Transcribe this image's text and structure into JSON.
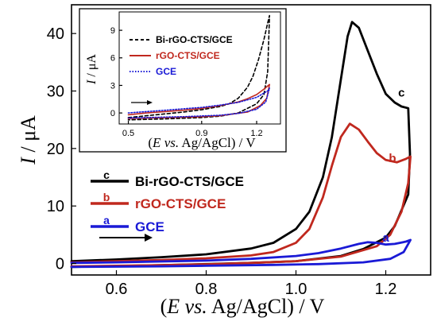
{
  "chart_data": [
    {
      "type": "line",
      "x_axis": {
        "label_parts": [
          "(",
          "E",
          " ",
          "vs.",
          " Ag/AgCl) / V"
        ],
        "range": [
          0.5,
          1.3
        ],
        "ticks": [
          0.6,
          0.8,
          1.0,
          1.2
        ],
        "tick_labels": [
          "0.6",
          "0.8",
          "1.0",
          "1.2"
        ]
      },
      "y_axis": {
        "label_parts": [
          "I",
          " / μA"
        ],
        "range": [
          -2,
          45
        ],
        "ticks": [
          0,
          10,
          20,
          30,
          40
        ],
        "tick_labels": [
          "0",
          "10",
          "20",
          "30",
          "40"
        ]
      },
      "legend": {
        "position": "left",
        "items": [
          {
            "marker": "c",
            "label": "Bi-rGO-CTS/GCE",
            "color": "#000000"
          },
          {
            "marker": "b",
            "label": "rGO-CTS/GCE",
            "color": "#c0281e"
          },
          {
            "marker": "a",
            "label": "GCE",
            "color": "#1a1ad6"
          }
        ]
      },
      "curve_labels": [
        {
          "text": "c",
          "at": [
            1.235,
            29.0
          ],
          "color": "#000000"
        },
        {
          "text": "b",
          "at": [
            1.215,
            17.6
          ],
          "color": "#c0281e"
        },
        {
          "text": "a",
          "at": [
            1.2,
            3.8
          ],
          "color": "#1a1ad6"
        }
      ],
      "scan_direction": "positive",
      "series": [
        {
          "name": "Bi-rGO-CTS/GCE",
          "color": "#000000",
          "forward": [
            [
              0.5,
              0.4
            ],
            [
              0.6,
              0.7
            ],
            [
              0.7,
              1.1
            ],
            [
              0.8,
              1.6
            ],
            [
              0.9,
              2.6
            ],
            [
              0.95,
              3.6
            ],
            [
              1.0,
              6.0
            ],
            [
              1.03,
              9.0
            ],
            [
              1.06,
              15.0
            ],
            [
              1.08,
              22.0
            ],
            [
              1.1,
              32.0
            ],
            [
              1.115,
              39.5
            ],
            [
              1.125,
              42.0
            ],
            [
              1.14,
              41.0
            ],
            [
              1.16,
              37.0
            ],
            [
              1.18,
              33.0
            ],
            [
              1.2,
              29.5
            ],
            [
              1.22,
              28.0
            ],
            [
              1.235,
              27.3
            ],
            [
              1.25,
              27.0
            ]
          ],
          "reverse": [
            [
              1.25,
              27.0
            ],
            [
              1.254,
              19.0
            ],
            [
              1.25,
              12.0
            ],
            [
              1.22,
              6.5
            ],
            [
              1.2,
              4.5
            ],
            [
              1.15,
              2.5
            ],
            [
              1.1,
              1.3
            ],
            [
              1.0,
              0.4
            ],
            [
              0.9,
              0.1
            ],
            [
              0.8,
              -0.1
            ],
            [
              0.7,
              -0.3
            ],
            [
              0.6,
              -0.45
            ],
            [
              0.5,
              -0.6
            ]
          ]
        },
        {
          "name": "rGO-CTS/GCE",
          "color": "#c0281e",
          "forward": [
            [
              0.5,
              0.2
            ],
            [
              0.6,
              0.4
            ],
            [
              0.7,
              0.6
            ],
            [
              0.8,
              0.9
            ],
            [
              0.9,
              1.4
            ],
            [
              0.95,
              2.0
            ],
            [
              1.0,
              3.6
            ],
            [
              1.03,
              6.0
            ],
            [
              1.06,
              11.5
            ],
            [
              1.08,
              17.0
            ],
            [
              1.1,
              22.0
            ],
            [
              1.12,
              24.3
            ],
            [
              1.14,
              23.3
            ],
            [
              1.16,
              21.2
            ],
            [
              1.18,
              19.2
            ],
            [
              1.2,
              18.0
            ],
            [
              1.225,
              17.6
            ],
            [
              1.245,
              18.2
            ],
            [
              1.255,
              18.6
            ]
          ],
          "reverse": [
            [
              1.255,
              18.6
            ],
            [
              1.25,
              14.0
            ],
            [
              1.235,
              9.0
            ],
            [
              1.21,
              5.0
            ],
            [
              1.18,
              3.0
            ],
            [
              1.1,
              1.2
            ],
            [
              1.0,
              0.4
            ],
            [
              0.9,
              0.1
            ],
            [
              0.8,
              -0.15
            ],
            [
              0.7,
              -0.3
            ],
            [
              0.6,
              -0.4
            ],
            [
              0.5,
              -0.5
            ]
          ]
        },
        {
          "name": "GCE",
          "color": "#1a1ad6",
          "forward": [
            [
              0.5,
              0.1
            ],
            [
              0.6,
              0.2
            ],
            [
              0.7,
              0.35
            ],
            [
              0.8,
              0.5
            ],
            [
              0.9,
              0.8
            ],
            [
              1.0,
              1.3
            ],
            [
              1.05,
              1.8
            ],
            [
              1.1,
              2.6
            ],
            [
              1.14,
              3.4
            ],
            [
              1.16,
              3.7
            ],
            [
              1.18,
              3.6
            ],
            [
              1.2,
              3.3
            ],
            [
              1.22,
              3.4
            ],
            [
              1.245,
              3.8
            ],
            [
              1.255,
              4.1
            ]
          ],
          "reverse": [
            [
              1.255,
              4.1
            ],
            [
              1.24,
              2.0
            ],
            [
              1.21,
              0.8
            ],
            [
              1.15,
              0.2
            ],
            [
              1.05,
              -0.1
            ],
            [
              0.95,
              -0.25
            ],
            [
              0.8,
              -0.4
            ],
            [
              0.7,
              -0.5
            ],
            [
              0.6,
              -0.55
            ],
            [
              0.5,
              -0.6
            ]
          ]
        }
      ]
    },
    {
      "type": "line",
      "x_axis": {
        "label_parts": [
          "(",
          "E",
          " ",
          "vs.",
          " Ag/AgCl) / V"
        ],
        "range": [
          0.45,
          1.33
        ],
        "ticks": [
          0.5,
          0.9,
          1.2
        ],
        "tick_labels": [
          "0.5",
          "0.9",
          "1.2"
        ]
      },
      "y_axis": {
        "label_parts": [
          "I",
          " / μA"
        ],
        "range": [
          -1.2,
          11
        ],
        "ticks": [
          0,
          3,
          6,
          9
        ],
        "tick_labels": [
          "0",
          "3",
          "6",
          "9"
        ]
      },
      "legend": {
        "position": "top-left",
        "items": [
          {
            "label": "Bi-rGO-CTS/GCE",
            "color": "#000000",
            "style": "dashed"
          },
          {
            "label": "rGO-CTS/GCE",
            "color": "#c0281e",
            "style": "solid"
          },
          {
            "label": "GCE",
            "color": "#1a1ad6",
            "style": "dotted"
          }
        ]
      },
      "scan_direction": "positive",
      "series": [
        {
          "name": "Bi-rGO-CTS/GCE",
          "color": "#000000",
          "style": "dashed",
          "forward": [
            [
              0.5,
              -0.5
            ],
            [
              0.6,
              -0.3
            ],
            [
              0.7,
              -0.1
            ],
            [
              0.8,
              0.1
            ],
            [
              0.9,
              0.35
            ],
            [
              1.0,
              0.7
            ],
            [
              1.05,
              1.0
            ],
            [
              1.1,
              1.6
            ],
            [
              1.15,
              2.8
            ],
            [
              1.18,
              4.0
            ],
            [
              1.21,
              5.8
            ],
            [
              1.24,
              8.0
            ],
            [
              1.26,
              9.8
            ],
            [
              1.27,
              10.6
            ]
          ],
          "reverse": [
            [
              1.27,
              10.6
            ],
            [
              1.26,
              4.5
            ],
            [
              1.24,
              2.0
            ],
            [
              1.2,
              1.0
            ],
            [
              1.1,
              0.0
            ],
            [
              1.0,
              -0.35
            ],
            [
              0.9,
              -0.5
            ],
            [
              0.7,
              -0.65
            ],
            [
              0.5,
              -0.75
            ]
          ]
        },
        {
          "name": "rGO-CTS/GCE",
          "color": "#c0281e",
          "style": "solid",
          "forward": [
            [
              0.5,
              -0.2
            ],
            [
              0.6,
              0.0
            ],
            [
              0.7,
              0.15
            ],
            [
              0.8,
              0.3
            ],
            [
              0.9,
              0.5
            ],
            [
              1.0,
              0.8
            ],
            [
              1.1,
              1.2
            ],
            [
              1.15,
              1.55
            ],
            [
              1.2,
              2.0
            ],
            [
              1.24,
              2.6
            ],
            [
              1.27,
              3.1
            ]
          ],
          "reverse": [
            [
              1.27,
              3.1
            ],
            [
              1.255,
              1.6
            ],
            [
              1.22,
              0.8
            ],
            [
              1.15,
              0.1
            ],
            [
              1.0,
              -0.3
            ],
            [
              0.9,
              -0.4
            ],
            [
              0.7,
              -0.5
            ],
            [
              0.5,
              -0.6
            ]
          ]
        },
        {
          "name": "GCE",
          "color": "#1a1ad6",
          "style": "dotted",
          "forward": [
            [
              0.5,
              0.0
            ],
            [
              0.6,
              0.15
            ],
            [
              0.7,
              0.3
            ],
            [
              0.8,
              0.45
            ],
            [
              0.9,
              0.6
            ],
            [
              1.0,
              0.85
            ],
            [
              1.1,
              1.15
            ],
            [
              1.2,
              1.7
            ],
            [
              1.26,
              2.4
            ],
            [
              1.27,
              2.7
            ]
          ],
          "reverse": [
            [
              1.27,
              2.7
            ],
            [
              1.25,
              1.2
            ],
            [
              1.2,
              0.4
            ],
            [
              1.1,
              -0.05
            ],
            [
              1.0,
              -0.25
            ],
            [
              0.8,
              -0.4
            ],
            [
              0.6,
              -0.5
            ],
            [
              0.5,
              -0.55
            ]
          ]
        }
      ]
    }
  ]
}
